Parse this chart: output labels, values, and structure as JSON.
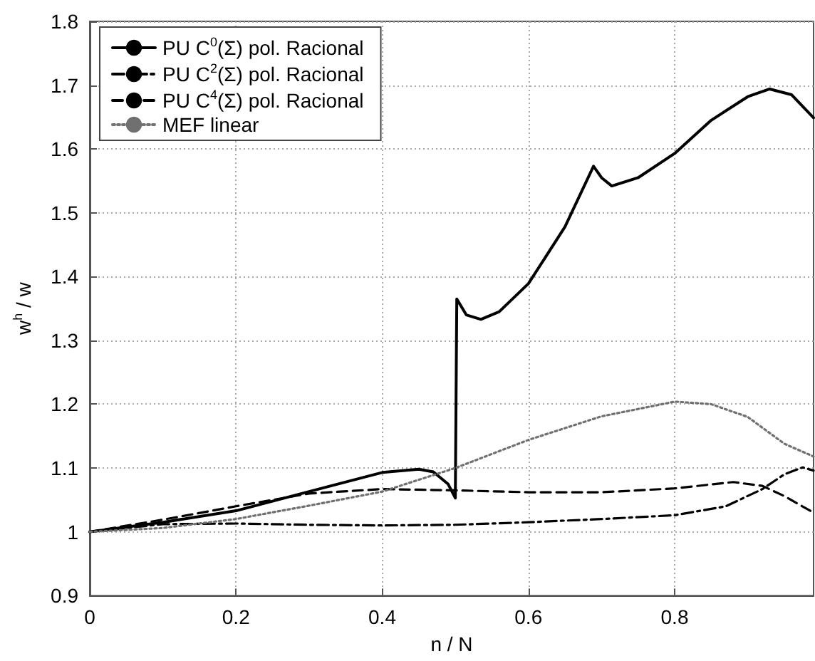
{
  "chart_data": {
    "type": "line",
    "xlabel": "n / N",
    "ylabel": "w$^{h}$ / w",
    "xlim": [
      0,
      0.99
    ],
    "ylim": [
      0.9,
      1.8
    ],
    "xticks": [
      0,
      0.2,
      0.4,
      0.6,
      0.8
    ],
    "yticks": [
      0.9,
      1,
      1.1,
      1.2,
      1.3,
      1.4,
      1.5,
      1.6,
      1.7,
      1.8
    ],
    "grid": true,
    "legend": "top left",
    "marker": "none",
    "series": [
      {
        "name": "PU C$^{0}$(Σ) pol. Racional",
        "color": "#000000",
        "line_style": "solid",
        "x": [
          0,
          0.1,
          0.2,
          0.3,
          0.4,
          0.45,
          0.47,
          0.49,
          0.5,
          0.502,
          0.515,
          0.535,
          0.56,
          0.6,
          0.65,
          0.689,
          0.7,
          0.714,
          0.75,
          0.8,
          0.85,
          0.9,
          0.93,
          0.96,
          0.99
        ],
        "values": [
          1,
          1.015,
          1.033,
          1.063,
          1.093,
          1.098,
          1.094,
          1.075,
          1.053,
          1.365,
          1.34,
          1.333,
          1.345,
          1.389,
          1.478,
          1.573,
          1.555,
          1.542,
          1.555,
          1.593,
          1.645,
          1.682,
          1.694,
          1.685,
          1.649
        ]
      },
      {
        "name": "PU C$^{2}$(Σ) pol. Racional",
        "color": "#000000",
        "line_style": "dashdot",
        "x": [
          0,
          0.1,
          0.2,
          0.3,
          0.4,
          0.5,
          0.6,
          0.7,
          0.8,
          0.87,
          0.92,
          0.95,
          0.975,
          0.99
        ],
        "values": [
          1,
          1.012,
          1.013,
          1.011,
          1.01,
          1.011,
          1.015,
          1.02,
          1.026,
          1.04,
          1.067,
          1.09,
          1.101,
          1.096
        ]
      },
      {
        "name": "PU C$^{4}$(Σ) pol. Racional",
        "color": "#000000",
        "line_style": "dashed",
        "x": [
          0,
          0.1,
          0.2,
          0.3,
          0.4,
          0.5,
          0.6,
          0.7,
          0.8,
          0.88,
          0.92,
          0.95,
          0.99
        ],
        "values": [
          1,
          1.019,
          1.04,
          1.06,
          1.067,
          1.065,
          1.062,
          1.062,
          1.068,
          1.078,
          1.072,
          1.056,
          1.03
        ]
      },
      {
        "name": "MEF linear",
        "color": "#707070",
        "line_style": "dotted",
        "x": [
          0,
          0.1,
          0.2,
          0.3,
          0.4,
          0.5,
          0.6,
          0.7,
          0.8,
          0.85,
          0.9,
          0.95,
          0.99
        ],
        "values": [
          1,
          1.006,
          1.02,
          1.041,
          1.063,
          1.1,
          1.144,
          1.181,
          1.204,
          1.2,
          1.18,
          1.138,
          1.118
        ]
      }
    ]
  }
}
